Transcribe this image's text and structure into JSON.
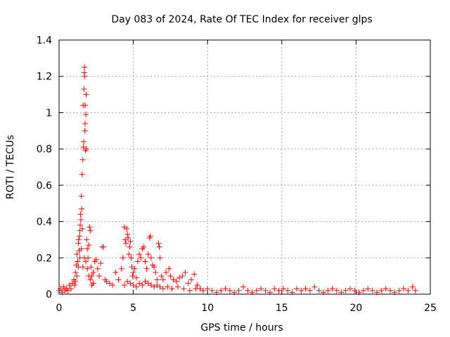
{
  "chart_data": {
    "type": "scatter",
    "title": "Day 083 of 2024, Rate Of TEC Index for receiver glps",
    "xlabel": "GPS time / hours",
    "ylabel": "ROTI / TECUs",
    "xlim": [
      0,
      25
    ],
    "ylim": [
      0,
      1.4
    ],
    "xticks": [
      0,
      5,
      10,
      15,
      20,
      25
    ],
    "xtick_labels": [
      "0",
      "5",
      "10",
      "15",
      "20",
      "25"
    ],
    "yticks": [
      0,
      0.2,
      0.4,
      0.6,
      0.8,
      1,
      1.2,
      1.4
    ],
    "ytick_labels": [
      "0",
      "0.2",
      "0.4",
      "0.6",
      "0.8",
      "1",
      "1.2",
      "1.4"
    ],
    "grid": true,
    "marker": "+",
    "color": "#ff0000",
    "series": [
      {
        "name": "ROTI",
        "points": [
          [
            0.0,
            0.02
          ],
          [
            0.1,
            0.03
          ],
          [
            0.2,
            0.01
          ],
          [
            0.3,
            0.04
          ],
          [
            0.4,
            0.02
          ],
          [
            0.5,
            0.03
          ],
          [
            0.6,
            0.02
          ],
          [
            0.7,
            0.05
          ],
          [
            0.8,
            0.03
          ],
          [
            0.9,
            0.06
          ],
          [
            1.0,
            0.08
          ],
          [
            1.05,
            0.05
          ],
          [
            1.1,
            0.12
          ],
          [
            1.15,
            0.16
          ],
          [
            1.2,
            0.22
          ],
          [
            1.25,
            0.18
          ],
          [
            1.3,
            0.28
          ],
          [
            1.32,
            0.3
          ],
          [
            1.35,
            0.24
          ],
          [
            1.38,
            0.32
          ],
          [
            1.4,
            0.35
          ],
          [
            1.42,
            0.38
          ],
          [
            1.45,
            0.44
          ],
          [
            1.47,
            0.41
          ],
          [
            1.5,
            0.54
          ],
          [
            1.52,
            0.47
          ],
          [
            1.55,
            0.66
          ],
          [
            1.57,
            0.36
          ],
          [
            1.6,
            0.74
          ],
          [
            1.62,
            1.04
          ],
          [
            1.64,
            0.81
          ],
          [
            1.66,
            0.84
          ],
          [
            1.68,
            1.13
          ],
          [
            1.7,
            1.22
          ],
          [
            1.71,
            1.25
          ],
          [
            1.72,
            1.2
          ],
          [
            1.74,
            0.9
          ],
          [
            1.75,
            0.94
          ],
          [
            1.76,
            1.04
          ],
          [
            1.78,
            0.79
          ],
          [
            1.8,
            0.99
          ],
          [
            1.82,
            1.1
          ],
          [
            1.84,
            0.8
          ],
          [
            1.86,
            0.3
          ],
          [
            1.9,
            0.25
          ],
          [
            1.95,
            0.2
          ],
          [
            2.0,
            0.27
          ],
          [
            2.05,
            0.37
          ],
          [
            2.1,
            0.35
          ],
          [
            2.15,
            0.15
          ],
          [
            2.2,
            0.1
          ],
          [
            2.3,
            0.12
          ],
          [
            2.4,
            0.18
          ],
          [
            2.5,
            0.19
          ],
          [
            2.6,
            0.14
          ],
          [
            2.7,
            0.1
          ],
          [
            2.8,
            0.17
          ],
          [
            2.9,
            0.26
          ],
          [
            3.0,
            0.26
          ],
          [
            3.1,
            0.08
          ],
          [
            3.2,
            0.07
          ],
          [
            3.4,
            0.06
          ],
          [
            3.6,
            0.05
          ],
          [
            3.8,
            0.12
          ],
          [
            4.0,
            0.08
          ],
          [
            4.2,
            0.14
          ],
          [
            1.1,
            0.07
          ],
          [
            1.2,
            0.1
          ],
          [
            1.3,
            0.15
          ],
          [
            1.4,
            0.2
          ],
          [
            1.5,
            0.25
          ],
          [
            1.6,
            0.15
          ],
          [
            1.7,
            0.2
          ],
          [
            1.8,
            0.18
          ],
          [
            1.9,
            0.14
          ],
          [
            2.0,
            0.1
          ],
          [
            2.1,
            0.08
          ],
          [
            2.2,
            0.05
          ],
          [
            2.3,
            0.06
          ],
          [
            4.3,
            0.2
          ],
          [
            4.4,
            0.37
          ],
          [
            4.45,
            0.3
          ],
          [
            4.5,
            0.28
          ],
          [
            4.55,
            0.36
          ],
          [
            4.6,
            0.33
          ],
          [
            4.65,
            0.31
          ],
          [
            4.7,
            0.22
          ],
          [
            4.75,
            0.26
          ],
          [
            4.8,
            0.29
          ],
          [
            4.85,
            0.2
          ],
          [
            4.9,
            0.15
          ],
          [
            4.95,
            0.1
          ],
          [
            5.0,
            0.12
          ],
          [
            5.1,
            0.14
          ],
          [
            5.2,
            0.09
          ],
          [
            5.3,
            0.18
          ],
          [
            5.4,
            0.22
          ],
          [
            5.5,
            0.2
          ],
          [
            5.6,
            0.25
          ],
          [
            5.7,
            0.26
          ],
          [
            5.8,
            0.18
          ],
          [
            5.9,
            0.14
          ],
          [
            6.0,
            0.22
          ],
          [
            6.1,
            0.31
          ],
          [
            6.15,
            0.32
          ],
          [
            6.2,
            0.2
          ],
          [
            6.3,
            0.16
          ],
          [
            6.4,
            0.15
          ],
          [
            6.5,
            0.12
          ],
          [
            6.6,
            0.08
          ],
          [
            6.7,
            0.28
          ],
          [
            6.75,
            0.26
          ],
          [
            6.8,
            0.2
          ],
          [
            6.9,
            0.1
          ],
          [
            7.0,
            0.08
          ],
          [
            7.2,
            0.12
          ],
          [
            7.4,
            0.14
          ],
          [
            7.5,
            0.1
          ],
          [
            7.7,
            0.08
          ],
          [
            7.9,
            0.07
          ],
          [
            8.1,
            0.09
          ],
          [
            8.3,
            0.1
          ],
          [
            8.5,
            0.12
          ],
          [
            8.7,
            0.06
          ],
          [
            8.9,
            0.08
          ],
          [
            9.1,
            0.11
          ],
          [
            9.3,
            0.05
          ],
          [
            9.5,
            0.03
          ],
          [
            4.4,
            0.05
          ],
          [
            4.6,
            0.07
          ],
          [
            4.8,
            0.06
          ],
          [
            5.0,
            0.05
          ],
          [
            5.2,
            0.04
          ],
          [
            5.4,
            0.06
          ],
          [
            5.6,
            0.05
          ],
          [
            5.8,
            0.07
          ],
          [
            6.0,
            0.06
          ],
          [
            6.2,
            0.05
          ],
          [
            6.4,
            0.04
          ],
          [
            6.6,
            0.05
          ],
          [
            6.8,
            0.04
          ],
          [
            7.0,
            0.03
          ],
          [
            7.3,
            0.04
          ],
          [
            7.6,
            0.03
          ],
          [
            8.0,
            0.04
          ],
          [
            8.4,
            0.03
          ],
          [
            8.8,
            0.02
          ],
          [
            9.2,
            0.03
          ],
          [
            9.7,
            0.02
          ],
          [
            10.0,
            0.03
          ],
          [
            10.3,
            0.02
          ],
          [
            10.6,
            0.01
          ],
          [
            10.9,
            0.02
          ],
          [
            11.2,
            0.03
          ],
          [
            11.5,
            0.02
          ],
          [
            11.8,
            0.01
          ],
          [
            12.1,
            0.02
          ],
          [
            12.4,
            0.04
          ],
          [
            12.7,
            0.02
          ],
          [
            13.0,
            0.01
          ],
          [
            13.3,
            0.02
          ],
          [
            13.6,
            0.03
          ],
          [
            13.9,
            0.02
          ],
          [
            14.2,
            0.01
          ],
          [
            14.5,
            0.03
          ],
          [
            14.8,
            0.02
          ],
          [
            15.1,
            0.03
          ],
          [
            15.4,
            0.02
          ],
          [
            15.7,
            0.01
          ],
          [
            16.0,
            0.03
          ],
          [
            16.3,
            0.02
          ],
          [
            16.6,
            0.03
          ],
          [
            16.9,
            0.02
          ],
          [
            17.2,
            0.04
          ],
          [
            17.5,
            0.02
          ],
          [
            17.8,
            0.01
          ],
          [
            18.1,
            0.02
          ],
          [
            18.4,
            0.03
          ],
          [
            18.7,
            0.02
          ],
          [
            19.0,
            0.01
          ],
          [
            19.3,
            0.02
          ],
          [
            19.6,
            0.03
          ],
          [
            19.9,
            0.02
          ],
          [
            20.2,
            0.01
          ],
          [
            20.5,
            0.02
          ],
          [
            20.8,
            0.03
          ],
          [
            21.1,
            0.02
          ],
          [
            21.4,
            0.01
          ],
          [
            21.7,
            0.02
          ],
          [
            22.0,
            0.03
          ],
          [
            22.3,
            0.02
          ],
          [
            22.6,
            0.01
          ],
          [
            22.9,
            0.02
          ],
          [
            23.2,
            0.03
          ],
          [
            23.5,
            0.02
          ],
          [
            23.8,
            0.04
          ],
          [
            24.0,
            0.02
          ]
        ]
      }
    ]
  }
}
